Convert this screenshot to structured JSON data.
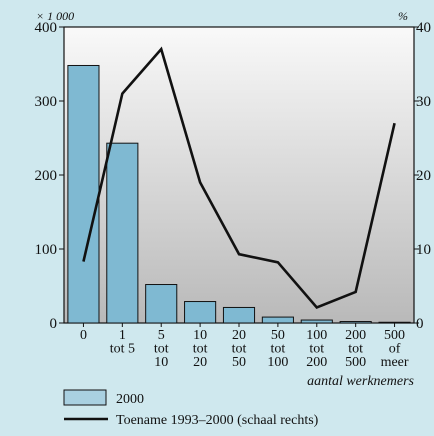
{
  "chart_data": {
    "type": "bar+line",
    "left_unit": "× 1 000",
    "right_unit": "%",
    "xlabel": "aantal werknemers",
    "categories": [
      [
        "0"
      ],
      [
        "1",
        "tot 5"
      ],
      [
        "5",
        "tot",
        "10"
      ],
      [
        "10",
        "tot",
        "20"
      ],
      [
        "20",
        "tot",
        "50"
      ],
      [
        "50",
        "tot",
        "100"
      ],
      [
        "100",
        "tot",
        "200"
      ],
      [
        "200",
        "tot",
        "500"
      ],
      [
        "500",
        "of",
        "meer"
      ]
    ],
    "y_left": {
      "min": 0,
      "max": 400,
      "ticks": [
        "0",
        "100",
        "200",
        "300",
        "400"
      ]
    },
    "y_right": {
      "min": 0,
      "max": 40,
      "ticks": [
        "0",
        "10",
        "20",
        "30",
        "40"
      ]
    },
    "series": [
      {
        "name": "2000",
        "kind": "bar",
        "axis": "left",
        "color": "#7fb9d2",
        "values": [
          348,
          243,
          52,
          29,
          21,
          8,
          4,
          2,
          1
        ]
      },
      {
        "name": "Toename 1993–2000 (schaal rechts)",
        "kind": "line",
        "axis": "right",
        "color": "#111111",
        "values": [
          8.3,
          31,
          37,
          19,
          9.3,
          8.2,
          2.1,
          4.2,
          27
        ]
      }
    ],
    "legend_position": "bottom-left",
    "grid": false
  }
}
